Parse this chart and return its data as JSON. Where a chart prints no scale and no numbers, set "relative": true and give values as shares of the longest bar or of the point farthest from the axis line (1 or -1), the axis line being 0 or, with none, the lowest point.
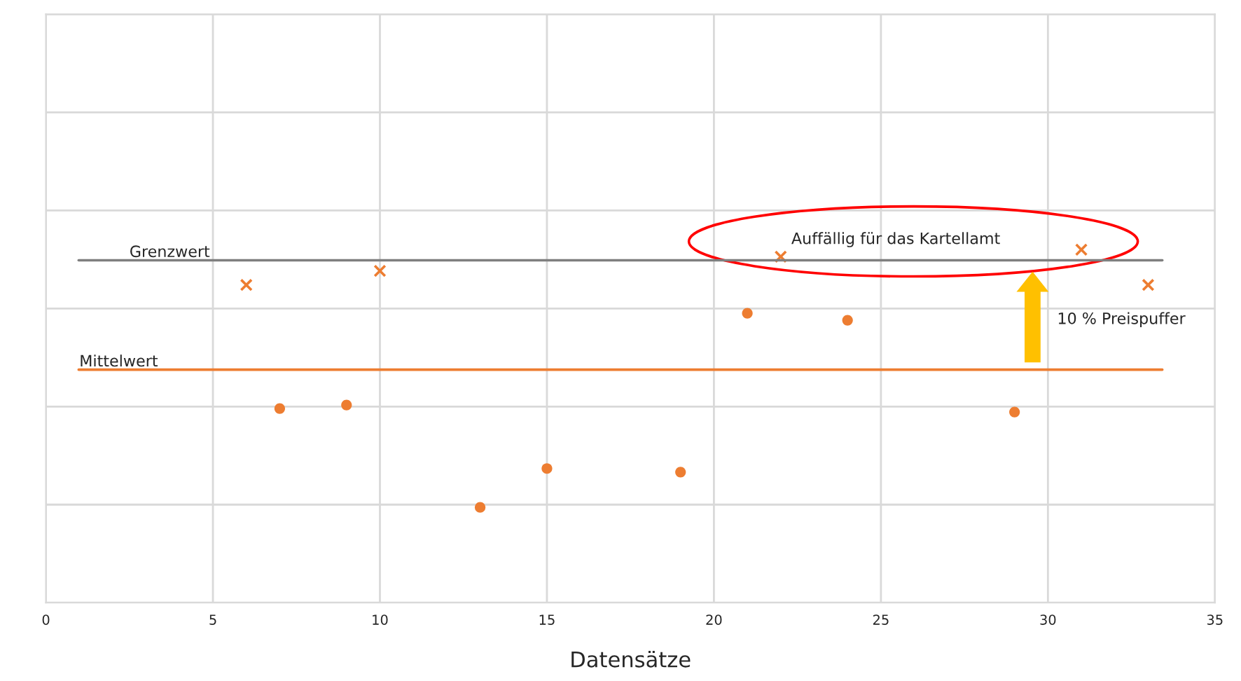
{
  "chart_data": {
    "type": "scatter",
    "relative": true,
    "xlabel": "Datensätze",
    "xlim": [
      0,
      35
    ],
    "xticks": [
      0,
      5,
      10,
      15,
      20,
      25,
      30,
      35
    ],
    "grid": true,
    "series": [
      {
        "marker": "cross",
        "color": "#ed7d31",
        "x": [
          6,
          10,
          22,
          31,
          33
        ],
        "values": [
          0.9,
          0.94,
          0.98,
          1.0,
          0.9
        ]
      },
      {
        "marker": "circle",
        "color": "#ed7d31",
        "x": [
          7,
          9,
          13,
          15,
          19,
          21,
          24,
          29
        ],
        "values": [
          0.55,
          0.56,
          0.27,
          0.38,
          0.37,
          0.82,
          0.8,
          0.54
        ]
      }
    ],
    "ref_lines": [
      {
        "axis": "y",
        "value": 0.97,
        "label": "Grenzwert",
        "color": "#7f7f7f"
      },
      {
        "axis": "y",
        "value": 0.66,
        "label": "Mittelwert",
        "color": "#ed7d31"
      }
    ],
    "annotations": [
      "Auffällig für das Kartellamt",
      "10 % Preispuffer"
    ]
  }
}
